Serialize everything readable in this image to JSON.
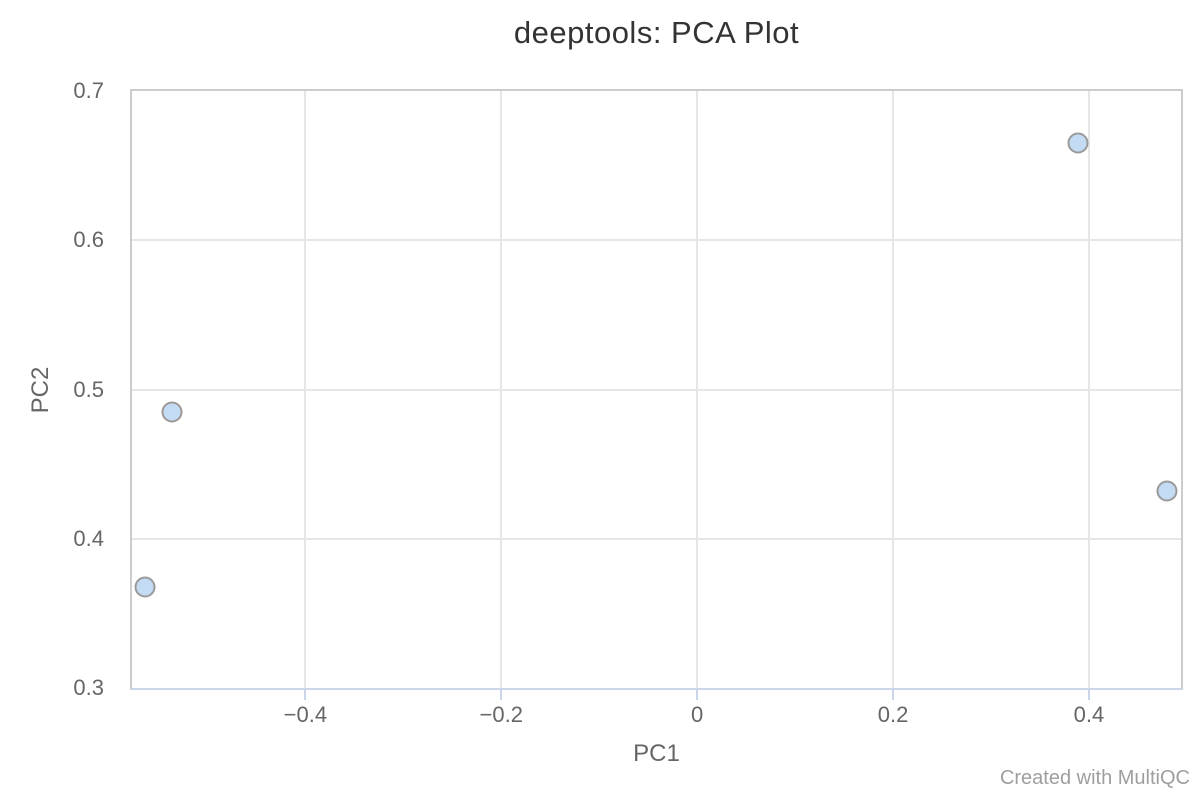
{
  "chart": {
    "title": "deeptools: PCA Plot",
    "xlabel": "PC1",
    "ylabel": "PC2"
  },
  "footer": {
    "watermark": "Created with MultiQC"
  },
  "colors": {
    "title_text": "#333333",
    "axis_text": "#666666",
    "watermark_text": "#9e9e9e",
    "plot_border": "#cccccc",
    "axis_line": "#ccd6eb",
    "gridline": "#e6e6e6",
    "marker_fill": "#c3dcf3",
    "marker_stroke": "#9a9a9a"
  },
  "chart_data": {
    "type": "scatter",
    "title": "deeptools: PCA Plot",
    "xlabel": "PC1",
    "ylabel": "PC2",
    "xlim": [
      -0.577,
      0.494
    ],
    "ylim": [
      0.3,
      0.7
    ],
    "grid": true,
    "legend_position": "none",
    "x_ticks": [
      {
        "value": -0.4,
        "label": "−0.4"
      },
      {
        "value": -0.2,
        "label": "−0.2"
      },
      {
        "value": 0,
        "label": "0"
      },
      {
        "value": 0.2,
        "label": "0.2"
      },
      {
        "value": 0.4,
        "label": "0.4"
      }
    ],
    "y_ticks": [
      {
        "value": 0.3,
        "label": "0.3"
      },
      {
        "value": 0.4,
        "label": "0.4"
      },
      {
        "value": 0.5,
        "label": "0.5"
      },
      {
        "value": 0.6,
        "label": "0.6"
      },
      {
        "value": 0.7,
        "label": "0.7"
      }
    ],
    "points": [
      {
        "x": 0.389,
        "y": 0.665
      },
      {
        "x": -0.536,
        "y": 0.485
      },
      {
        "x": 0.48,
        "y": 0.432
      },
      {
        "x": -0.564,
        "y": 0.368
      }
    ],
    "marker_radius": 10
  }
}
